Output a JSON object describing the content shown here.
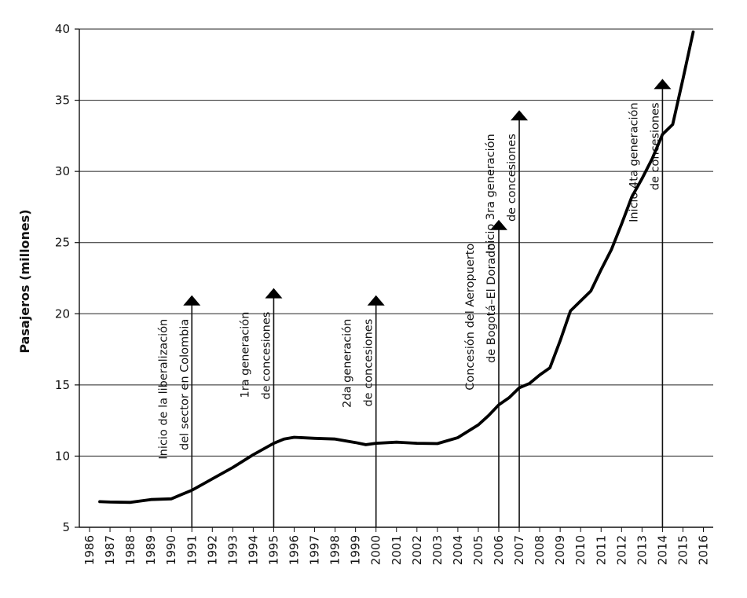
{
  "chart_data": {
    "type": "line",
    "title": "",
    "xlabel": "",
    "ylabel": "Pasajeros (millones)",
    "x": [
      1986,
      1987,
      1988,
      1989,
      1990,
      1991,
      1992,
      1993,
      1994,
      1995,
      1996,
      1997,
      1998,
      1999,
      2000,
      2001,
      2002,
      2003,
      2004,
      2005,
      2006,
      2007,
      2008,
      2009,
      2010,
      2011,
      2012,
      2013,
      2014,
      2015,
      2016
    ],
    "x_tick_labels": [
      "1986",
      "1987",
      "1988",
      "1989",
      "1990",
      "1991",
      "1992",
      "1993",
      "1994",
      "1995",
      "1996",
      "1997",
      "1998",
      "1999",
      "2000",
      "2001",
      "2002",
      "2003",
      "2004",
      "2005",
      "2006",
      "2007",
      "2008",
      "2009",
      "2010",
      "2011",
      "2012",
      "2013",
      "2014",
      "2015",
      "2016"
    ],
    "ylim": [
      5,
      40
    ],
    "y_ticks": [
      5,
      10,
      15,
      20,
      25,
      30,
      35,
      40
    ],
    "grid": "horizontal",
    "series": [
      {
        "points": [
          [
            1986.5,
            6.8
          ],
          [
            1987,
            6.77
          ],
          [
            1988,
            6.75
          ],
          [
            1988.5,
            6.85
          ],
          [
            1989,
            6.95
          ],
          [
            1990,
            7.0
          ],
          [
            1990.5,
            7.3
          ],
          [
            1991,
            7.6
          ],
          [
            1992,
            8.4
          ],
          [
            1993,
            9.2
          ],
          [
            1994,
            10.1
          ],
          [
            1995,
            10.9
          ],
          [
            1995.5,
            11.2
          ],
          [
            1996,
            11.32
          ],
          [
            1997,
            11.25
          ],
          [
            1998,
            11.2
          ],
          [
            1999,
            10.95
          ],
          [
            1999.5,
            10.8
          ],
          [
            2000,
            10.9
          ],
          [
            2001,
            10.98
          ],
          [
            2002,
            10.9
          ],
          [
            2003,
            10.88
          ],
          [
            2004,
            11.3
          ],
          [
            2005,
            12.2
          ],
          [
            2005.5,
            12.85
          ],
          [
            2006,
            13.6
          ],
          [
            2006.5,
            14.1
          ],
          [
            2007,
            14.8
          ],
          [
            2007.5,
            15.1
          ],
          [
            2008,
            15.7
          ],
          [
            2008.5,
            16.2
          ],
          [
            2009,
            18.1
          ],
          [
            2009.5,
            20.2
          ],
          [
            2010,
            20.9
          ],
          [
            2010.5,
            21.6
          ],
          [
            2011,
            23.1
          ],
          [
            2011.5,
            24.5
          ],
          [
            2012,
            26.3
          ],
          [
            2012.5,
            28.2
          ],
          [
            2013,
            29.5
          ],
          [
            2013.5,
            30.9
          ],
          [
            2014,
            32.6
          ],
          [
            2014.5,
            33.3
          ],
          [
            2015,
            36.5
          ],
          [
            2015.5,
            39.8
          ]
        ]
      }
    ],
    "annotations": [
      {
        "x": 1991,
        "y_top": 21.3,
        "lines": [
          "Inicio de la liberalización",
          "del sector en Colombia"
        ]
      },
      {
        "x": 1995,
        "y_top": 21.8,
        "lines": [
          "1ra generación",
          "de concesiones"
        ]
      },
      {
        "x": 2000,
        "y_top": 21.3,
        "lines": [
          "2da generación",
          "de concesiones"
        ]
      },
      {
        "x": 2006,
        "y_top": 26.6,
        "lines": [
          "Concesión del Aeropuerto",
          "de Bogotá–El Dorado"
        ]
      },
      {
        "x": 2007,
        "y_top": 34.3,
        "lines": [
          "Inicio 3ra generación",
          "de concesiones"
        ]
      },
      {
        "x": 2014,
        "y_top": 36.5,
        "lines": [
          "Inicio 4ta generación",
          "de concesiones"
        ]
      }
    ]
  }
}
